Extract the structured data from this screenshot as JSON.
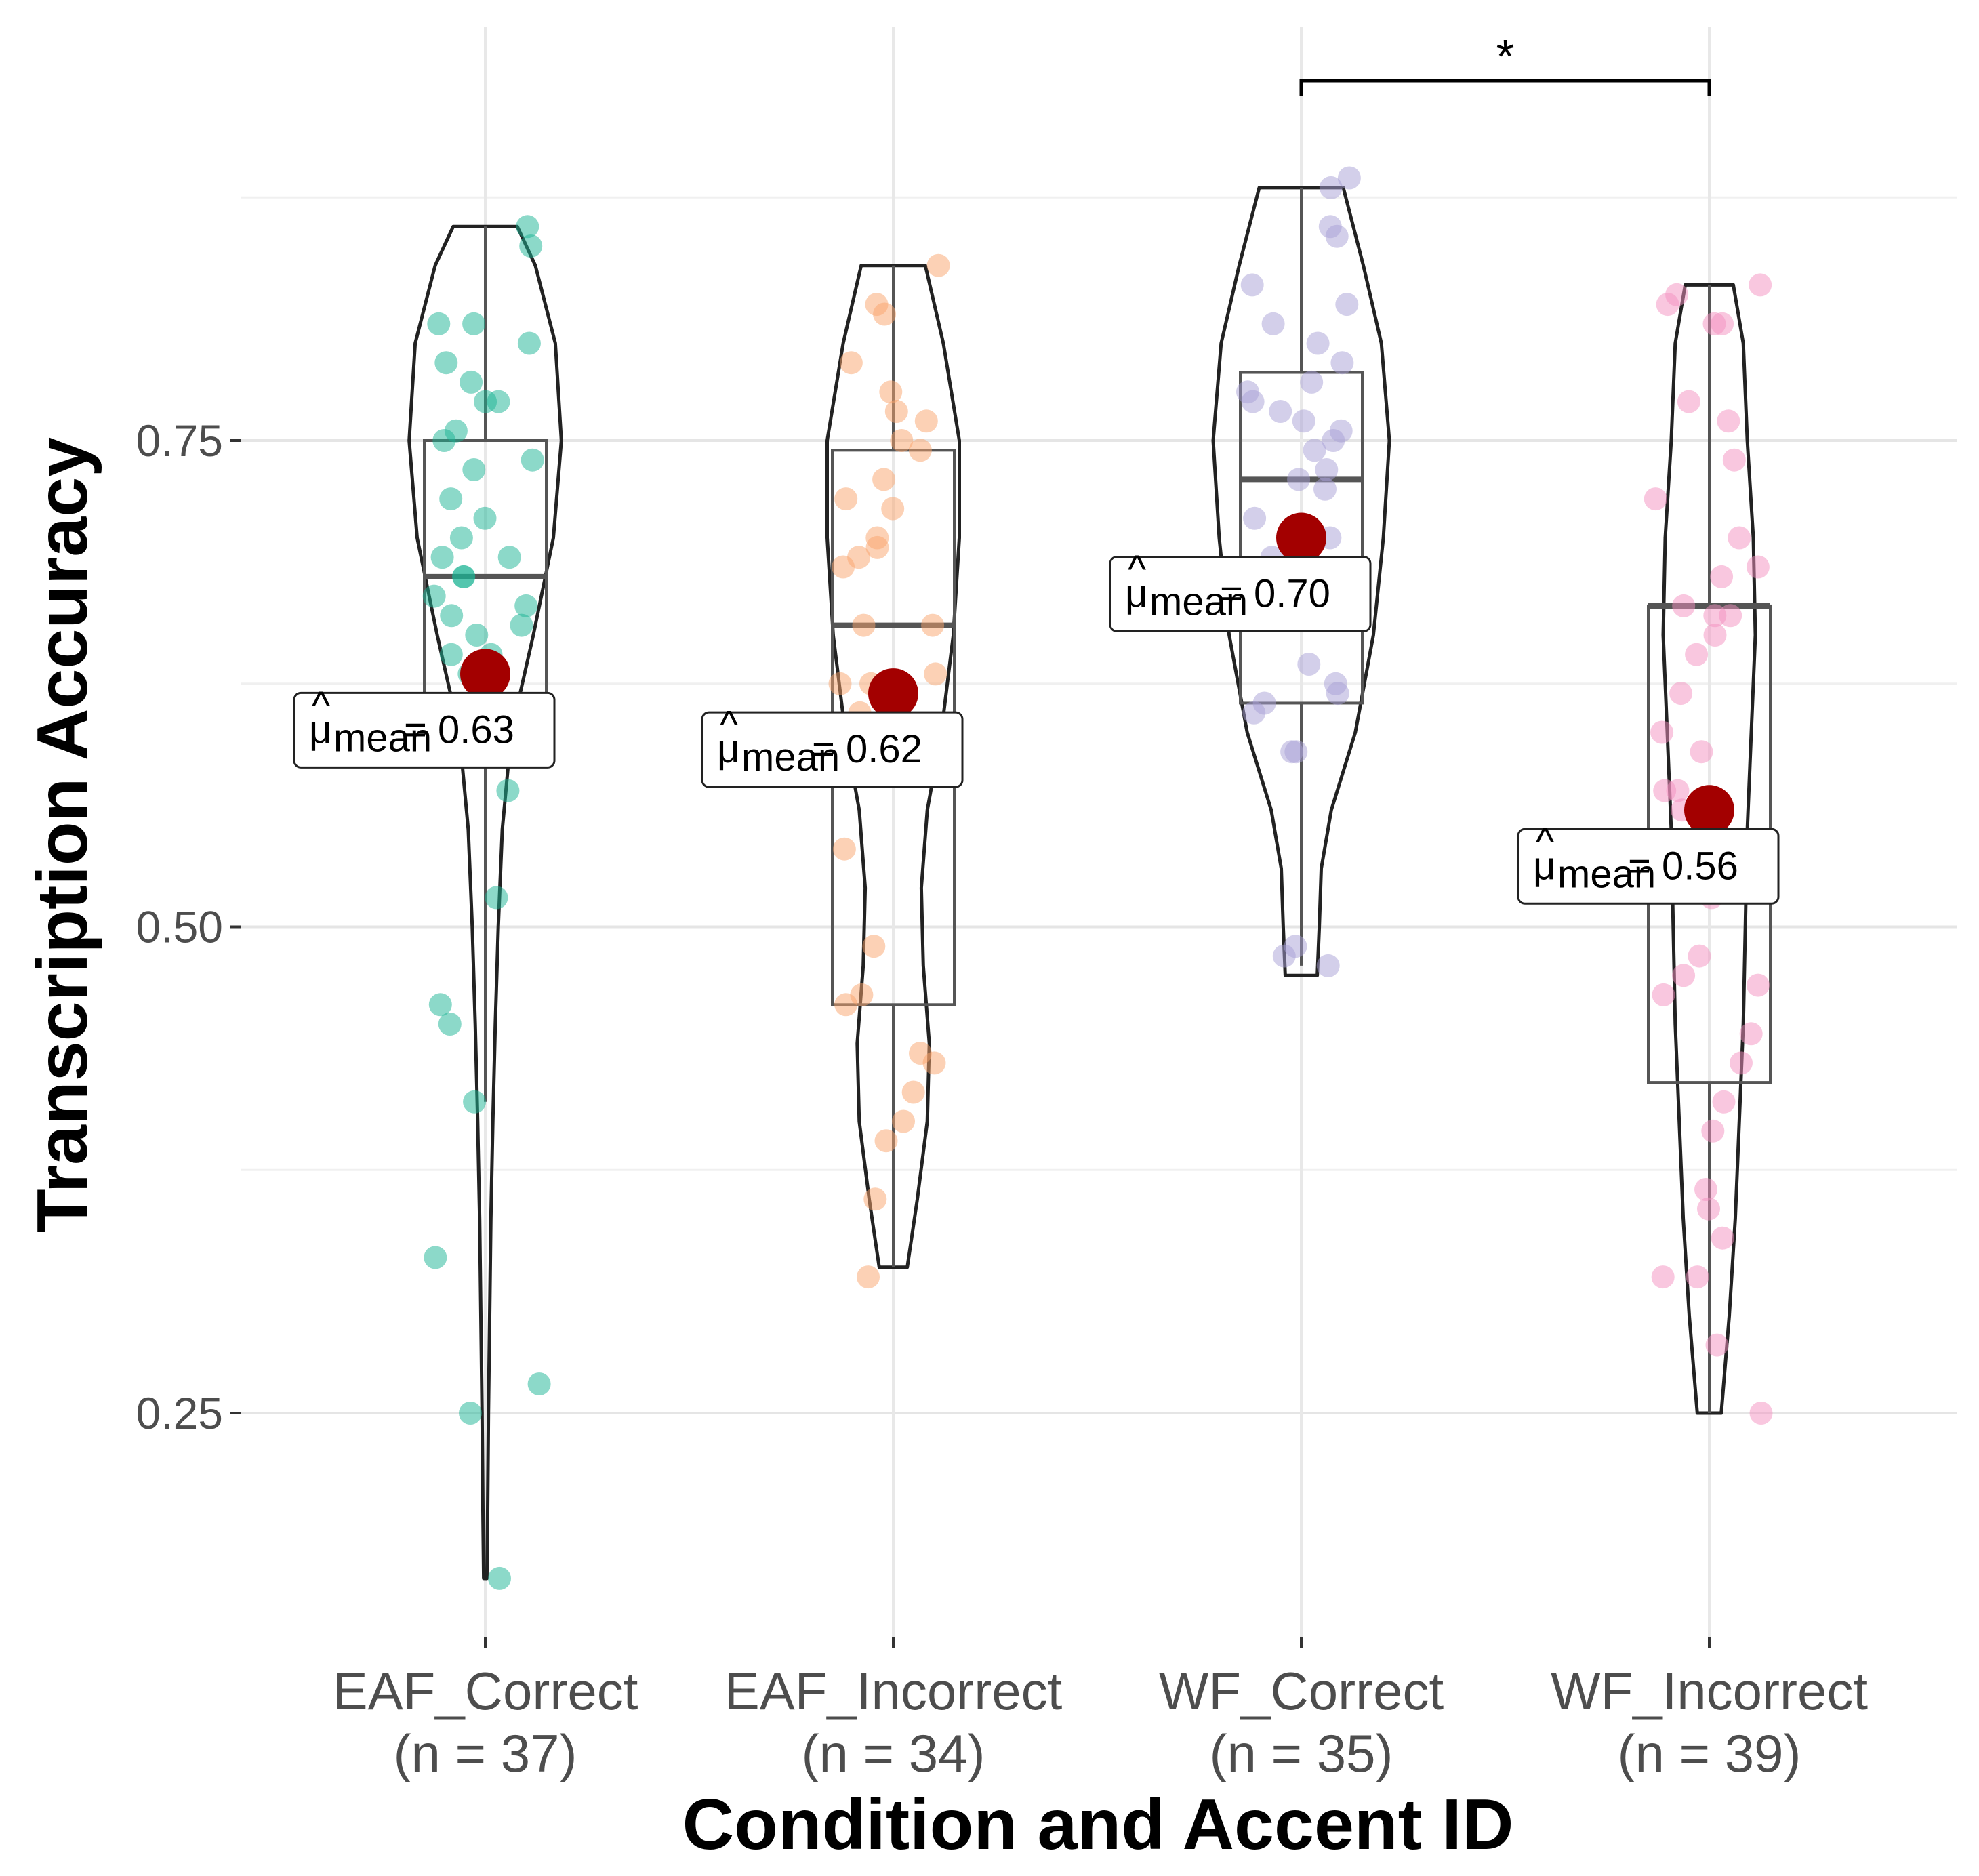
{
  "chart_data": {
    "type": "violin",
    "xlabel": "Condition and Accent ID",
    "ylabel": "Transcription Accuracy",
    "ylim": [
      0.12,
      1.0
    ],
    "yticks": [
      0.25,
      0.5,
      0.75
    ],
    "ytick_labels": [
      "0.25",
      "0.50",
      "0.75"
    ],
    "minor_gridlines": [
      0.375,
      0.625,
      0.875
    ],
    "grid": true,
    "categories": [
      "EAF_Correct",
      "EAF_Incorrect",
      "WF_Correct",
      "WF_Incorrect"
    ],
    "category_labels": [
      {
        "name": "EAF_Correct",
        "n_label": "(n = 37)"
      },
      {
        "name": "EAF_Incorrect",
        "n_label": "(n = 34)"
      },
      {
        "name": "WF_Correct",
        "n_label": "(n = 35)"
      },
      {
        "name": "WF_Incorrect",
        "n_label": "(n = 39)"
      }
    ],
    "groups": [
      {
        "category": "EAF_Correct",
        "color": "#1ab394",
        "n": 37,
        "mean": 0.63,
        "mean_label": "= 0.63",
        "box": {
          "q1": 0.61,
          "median": 0.68,
          "q3": 0.75,
          "whisker_low": 0.41,
          "whisker_high": 0.86
        },
        "violin": {
          "min": 0.165,
          "max": 0.86,
          "profile": [
            [
              0.165,
              0.008
            ],
            [
              0.2,
              0.012
            ],
            [
              0.25,
              0.016
            ],
            [
              0.3,
              0.022
            ],
            [
              0.35,
              0.028
            ],
            [
              0.4,
              0.038
            ],
            [
              0.45,
              0.05
            ],
            [
              0.5,
              0.065
            ],
            [
              0.55,
              0.085
            ],
            [
              0.6,
              0.13
            ],
            [
              0.65,
              0.24
            ],
            [
              0.7,
              0.34
            ],
            [
              0.75,
              0.38
            ],
            [
              0.8,
              0.35
            ],
            [
              0.84,
              0.25
            ],
            [
              0.86,
              0.16
            ]
          ]
        },
        "points": [
          0.86,
          0.85,
          0.81,
          0.81,
          0.8,
          0.79,
          0.78,
          0.77,
          0.77,
          0.755,
          0.75,
          0.74,
          0.735,
          0.72,
          0.71,
          0.7,
          0.69,
          0.69,
          0.68,
          0.68,
          0.67,
          0.665,
          0.66,
          0.655,
          0.65,
          0.64,
          0.64,
          0.63,
          0.57,
          0.515,
          0.46,
          0.45,
          0.41,
          0.33,
          0.265,
          0.25,
          0.165
        ]
      },
      {
        "category": "EAF_Incorrect",
        "color": "#f9a46b",
        "n": 34,
        "mean": 0.62,
        "mean_label": "= 0.62",
        "box": {
          "q1": 0.46,
          "median": 0.655,
          "q3": 0.745,
          "whisker_low": 0.325,
          "whisker_high": 0.84
        },
        "violin": {
          "min": 0.325,
          "max": 0.84,
          "profile": [
            [
              0.325,
              0.07
            ],
            [
              0.36,
              0.12
            ],
            [
              0.4,
              0.17
            ],
            [
              0.44,
              0.18
            ],
            [
              0.48,
              0.15
            ],
            [
              0.52,
              0.14
            ],
            [
              0.56,
              0.17
            ],
            [
              0.6,
              0.24
            ],
            [
              0.65,
              0.3
            ],
            [
              0.7,
              0.33
            ],
            [
              0.75,
              0.33
            ],
            [
              0.8,
              0.25
            ],
            [
              0.84,
              0.16
            ]
          ]
        },
        "points": [
          0.84,
          0.82,
          0.815,
          0.79,
          0.775,
          0.765,
          0.76,
          0.75,
          0.745,
          0.73,
          0.72,
          0.715,
          0.7,
          0.695,
          0.69,
          0.685,
          0.655,
          0.655,
          0.63,
          0.625,
          0.54,
          0.49,
          0.465,
          0.46,
          0.435,
          0.43,
          0.415,
          0.4,
          0.39,
          0.36,
          0.32,
          0.625,
          0.6,
          0.61
        ]
      },
      {
        "category": "WF_Correct",
        "color": "#a8a0d6",
        "n": 35,
        "mean": 0.7,
        "mean_label": "= 0.70",
        "box": {
          "q1": 0.615,
          "median": 0.73,
          "q3": 0.785,
          "whisker_low": 0.48,
          "whisker_high": 0.88
        },
        "violin": {
          "min": 0.475,
          "max": 0.88,
          "profile": [
            [
              0.475,
              0.08
            ],
            [
              0.5,
              0.09
            ],
            [
              0.53,
              0.1
            ],
            [
              0.56,
              0.15
            ],
            [
              0.6,
              0.27
            ],
            [
              0.65,
              0.36
            ],
            [
              0.7,
              0.41
            ],
            [
              0.75,
              0.44
            ],
            [
              0.8,
              0.4
            ],
            [
              0.84,
              0.31
            ],
            [
              0.88,
              0.21
            ]
          ]
        },
        "points": [
          0.885,
          0.88,
          0.86,
          0.855,
          0.83,
          0.82,
          0.81,
          0.8,
          0.79,
          0.78,
          0.775,
          0.77,
          0.765,
          0.76,
          0.755,
          0.75,
          0.745,
          0.735,
          0.73,
          0.725,
          0.71,
          0.7,
          0.69,
          0.68,
          0.665,
          0.635,
          0.625,
          0.62,
          0.615,
          0.61,
          0.59,
          0.59,
          0.49,
          0.485,
          0.48
        ]
      },
      {
        "category": "WF_Incorrect",
        "color": "#f48fc0",
        "n": 39,
        "mean": 0.56,
        "mean_label": "= 0.56",
        "box": {
          "q1": 0.42,
          "median": 0.665,
          "q3": 0.665,
          "whisker_low": 0.25,
          "whisker_high": 0.83
        },
        "violin": {
          "min": 0.25,
          "max": 0.83,
          "profile": [
            [
              0.25,
              0.06
            ],
            [
              0.3,
              0.1
            ],
            [
              0.35,
              0.13
            ],
            [
              0.4,
              0.15
            ],
            [
              0.45,
              0.17
            ],
            [
              0.5,
              0.18
            ],
            [
              0.55,
              0.19
            ],
            [
              0.6,
              0.21
            ],
            [
              0.65,
              0.23
            ],
            [
              0.7,
              0.22
            ],
            [
              0.75,
              0.19
            ],
            [
              0.8,
              0.17
            ],
            [
              0.83,
              0.12
            ]
          ]
        },
        "points": [
          0.83,
          0.825,
          0.82,
          0.81,
          0.81,
          0.77,
          0.76,
          0.74,
          0.72,
          0.7,
          0.685,
          0.68,
          0.665,
          0.66,
          0.66,
          0.65,
          0.64,
          0.62,
          0.6,
          0.59,
          0.57,
          0.57,
          0.56,
          0.515,
          0.485,
          0.475,
          0.47,
          0.465,
          0.445,
          0.43,
          0.41,
          0.395,
          0.365,
          0.355,
          0.34,
          0.32,
          0.32,
          0.285,
          0.25
        ]
      }
    ],
    "significance": {
      "from": "WF_Correct",
      "to": "WF_Incorrect",
      "y": 0.935,
      "label": "*"
    }
  }
}
